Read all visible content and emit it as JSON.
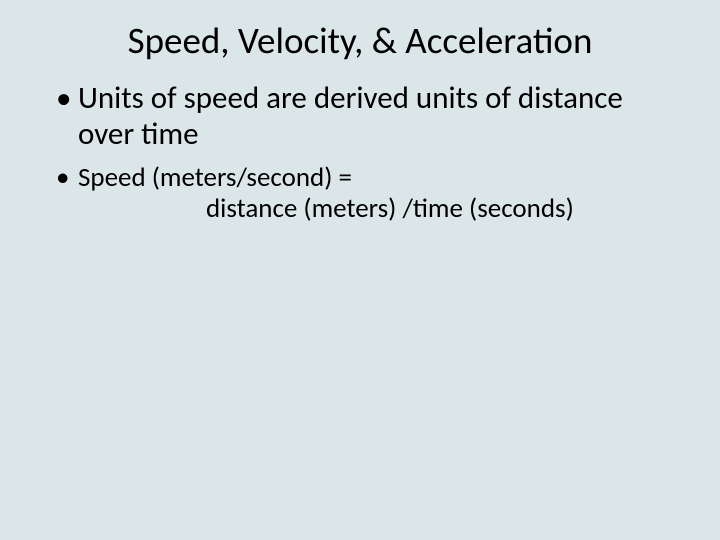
{
  "slide": {
    "background_color": "#dbe6e8",
    "title": {
      "text": "Speed, Velocity, & Acceleration",
      "fontsize": 37,
      "color": "#000000"
    },
    "bullets": [
      {
        "text": "Units of speed are derived units of distance over time",
        "fontsize": 31,
        "level": 1
      },
      {
        "text": "Speed (meters/second) =",
        "fontsize": 27,
        "level": 1
      }
    ],
    "indent_line": {
      "text": "distance (meters) /time (seconds)",
      "fontsize": 27
    }
  }
}
